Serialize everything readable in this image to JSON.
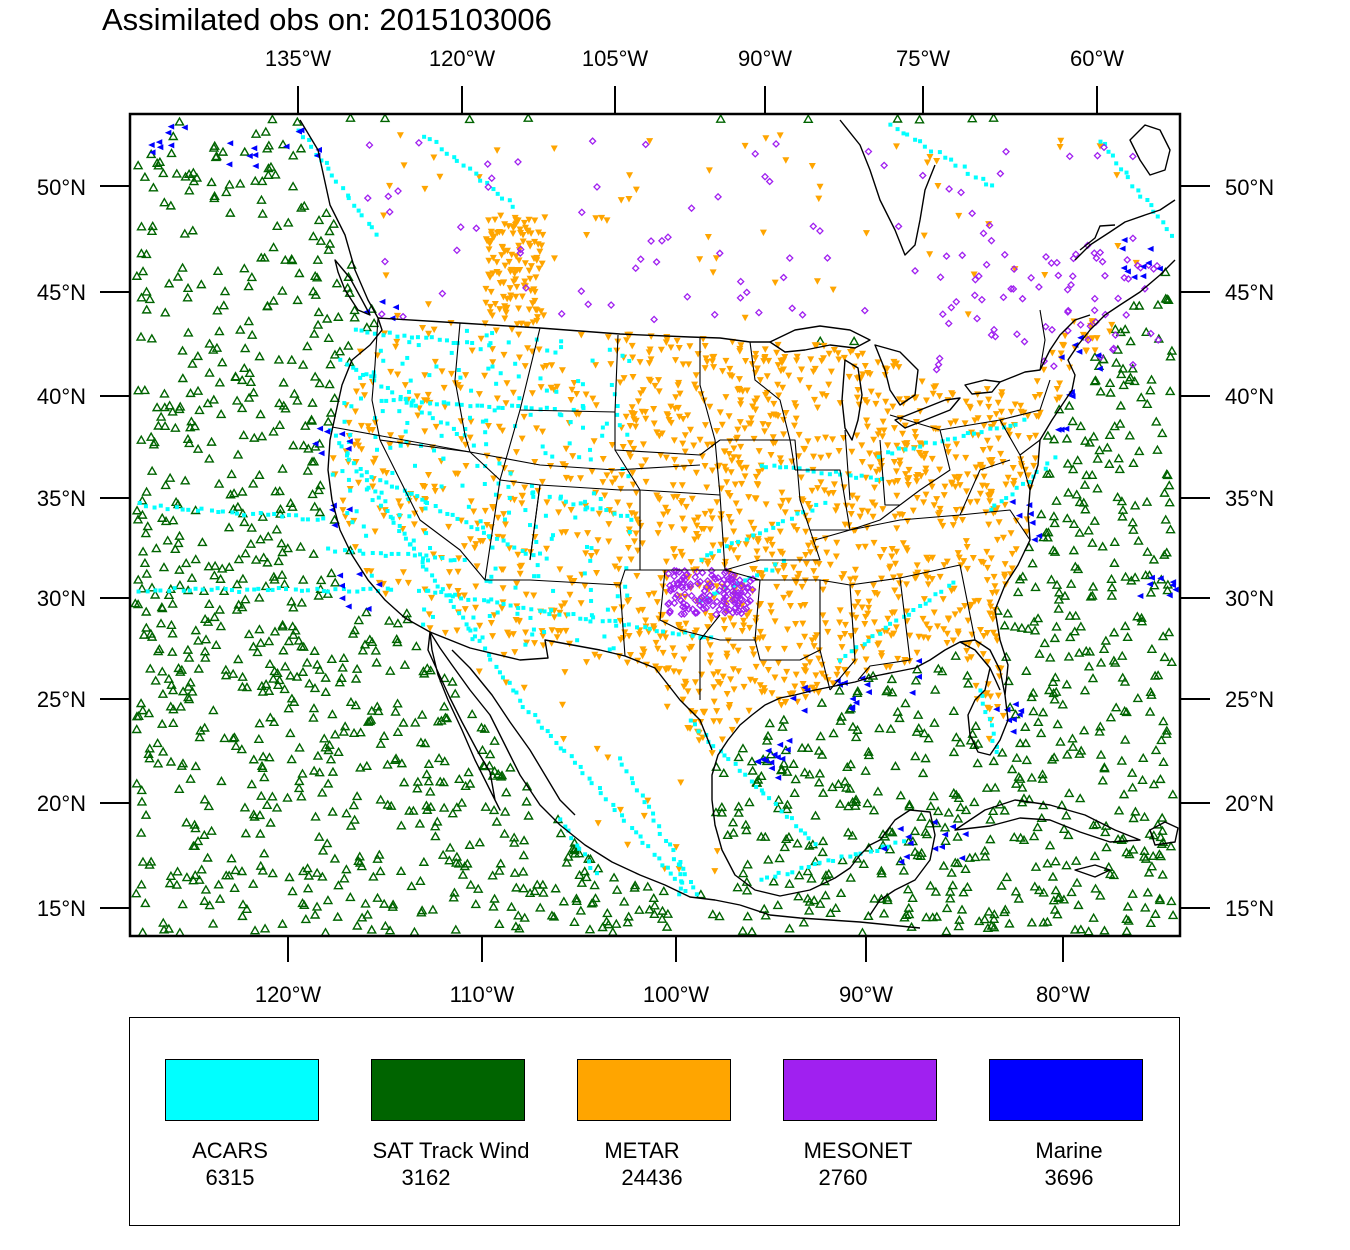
{
  "title": "Assimilated obs on: 2015103006",
  "map": {
    "projection": "Lambert conformal (CONUS)",
    "top_axis_labels": [
      "135°W",
      "120°W",
      "105°W",
      "90°W",
      "75°W",
      "60°W"
    ],
    "bottom_axis_labels": [
      "120°W",
      "110°W",
      "100°W",
      "90°W",
      "80°W"
    ],
    "left_axis_labels": [
      "50°N",
      "45°N",
      "40°N",
      "35°N",
      "30°N",
      "25°N",
      "20°N",
      "15°N"
    ],
    "right_axis_labels": [
      "50°N",
      "45°N",
      "40°N",
      "35°N",
      "30°N",
      "25°N",
      "20°N",
      "15°N"
    ]
  },
  "legend": [
    {
      "name": "ACARS",
      "count": "6315",
      "color": "#00ffff",
      "marker": "square"
    },
    {
      "name": "SAT Track Wind",
      "count": "3162",
      "color": "#006400",
      "marker": "triangle-up"
    },
    {
      "name": "METAR",
      "count": "24436",
      "color": "#ffa500",
      "marker": "triangle-down"
    },
    {
      "name": "MESONET",
      "count": "2760",
      "color": "#a020f0",
      "marker": "diamond"
    },
    {
      "name": "Marine",
      "count": "3696",
      "color": "#0000ff",
      "marker": "triangle-left"
    }
  ],
  "colors": {
    "land_outline": "#000000",
    "background": "#ffffff"
  }
}
